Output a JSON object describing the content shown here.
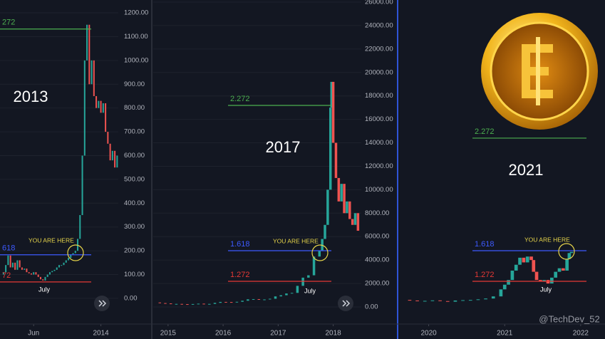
{
  "chart_data": [
    {
      "type": "candlestick",
      "title": "2013",
      "x": [
        2013.14,
        2013.16,
        2013.18,
        2013.2,
        2013.22,
        2013.24,
        2013.26,
        2013.28,
        2013.3,
        2013.32,
        2013.34,
        2013.36,
        2013.38,
        2013.4,
        2013.42,
        2013.44,
        2013.46,
        2013.48,
        2013.5,
        2013.52,
        2013.54,
        2013.56,
        2013.58,
        2013.6,
        2013.62,
        2013.64,
        2013.66,
        2013.68,
        2013.7,
        2013.72,
        2013.74,
        2013.76,
        2013.78,
        2013.8,
        2013.82,
        2013.84,
        2013.86,
        2013.88,
        2013.9,
        2013.92,
        2013.94,
        2013.96,
        2013.98,
        2014.0,
        2014.02,
        2014.04,
        2014.06,
        2014.08,
        2014.1,
        2014.12,
        2014.14
      ],
      "values": [
        100,
        110,
        140,
        180,
        130,
        150,
        120,
        160,
        130,
        120,
        125,
        110,
        105,
        100,
        110,
        100,
        90,
        80,
        75,
        90,
        100,
        110,
        115,
        120,
        130,
        140,
        140,
        150,
        160,
        170,
        185,
        190,
        200,
        250,
        350,
        600,
        1000,
        1150,
        900,
        1000,
        850,
        800,
        830,
        780,
        820,
        700,
        650,
        580,
        620,
        550,
        600
      ],
      "xlim": [
        2013.13,
        2014.15
      ],
      "ylim": [
        -108,
        1254
      ],
      "xticks": [
        {
          "value": 2013.42,
          "label": "Jun"
        },
        2014
      ],
      "yticks": [
        {
          "value": 0,
          "label": "0.00"
        },
        {
          "value": 100,
          "label": "100.00"
        },
        {
          "value": 200,
          "label": "200.00"
        },
        {
          "value": 300,
          "label": "300.00"
        },
        {
          "value": 400,
          "label": "400.00"
        },
        {
          "value": 500,
          "label": "500.00"
        },
        {
          "value": 600,
          "label": "600.00"
        },
        {
          "value": 700,
          "label": "700.00"
        },
        {
          "value": 800,
          "label": "800.00"
        },
        {
          "value": 900,
          "label": "900.00"
        },
        {
          "value": 1000,
          "label": "1000.00"
        },
        {
          "value": 1100,
          "label": "1100.00"
        },
        {
          "value": 1200,
          "label": "1200.00"
        }
      ],
      "grid": true,
      "levels": [
        {
          "label": "272",
          "value": 1132,
          "color": "#4caf50"
        },
        {
          "label": "618",
          "value": 183,
          "color": "#3d5afe"
        },
        {
          "label": "72",
          "value": 69,
          "color": "#e53935"
        }
      ],
      "annotations": [
        "YOU ARE HERE",
        "July"
      ]
    },
    {
      "type": "candlestick",
      "title": "2017",
      "x": [
        2014.75,
        2014.85,
        2014.95,
        2015.05,
        2015.15,
        2015.25,
        2015.35,
        2015.45,
        2015.55,
        2015.65,
        2015.75,
        2015.85,
        2015.95,
        2016.05,
        2016.15,
        2016.25,
        2016.35,
        2016.45,
        2016.55,
        2016.65,
        2016.75,
        2016.85,
        2016.95,
        2017.05,
        2017.15,
        2017.25,
        2017.35,
        2017.45,
        2017.55,
        2017.65,
        2017.75,
        2017.8,
        2017.85,
        2017.9,
        2017.95,
        2017.97,
        2018.0,
        2018.05,
        2018.1,
        2018.15,
        2018.2,
        2018.25,
        2018.3,
        2018.35,
        2018.4,
        2018.45
      ],
      "values": [
        380,
        330,
        300,
        250,
        260,
        240,
        235,
        250,
        280,
        240,
        260,
        350,
        430,
        420,
        410,
        440,
        530,
        650,
        670,
        610,
        640,
        700,
        900,
        1000,
        1150,
        1200,
        1800,
        2500,
        2700,
        4300,
        4800,
        5800,
        7000,
        10000,
        17000,
        19200,
        14000,
        11000,
        9000,
        10500,
        8000,
        9000,
        7500,
        7000,
        8000,
        6500
      ],
      "xlim": [
        2014.73,
        2018.51
      ],
      "ylim": [
        -1458,
        26182
      ],
      "xticks": [
        2015,
        2016,
        2017,
        2018
      ],
      "yticks": [
        {
          "value": 0,
          "label": "0.00"
        },
        {
          "value": 2000,
          "label": "2000.00"
        },
        {
          "value": 4000,
          "label": "4000.00"
        },
        {
          "value": 6000,
          "label": "6000.00"
        },
        {
          "value": 8000,
          "label": "8000.00"
        },
        {
          "value": 10000,
          "label": "10000.00"
        },
        {
          "value": 12000,
          "label": "12000.00"
        },
        {
          "value": 14000,
          "label": "14000.00"
        },
        {
          "value": 16000,
          "label": "16000.00"
        },
        {
          "value": 18000,
          "label": "18000.00"
        },
        {
          "value": 20000,
          "label": "20000.00"
        },
        {
          "value": 22000,
          "label": "22000.00"
        },
        {
          "value": 24000,
          "label": "24000.00"
        },
        {
          "value": 26000,
          "label": "26000.00"
        }
      ],
      "grid": true,
      "levels": [
        {
          "label": "2.272",
          "value": 17193,
          "color": "#4caf50"
        },
        {
          "label": "1.618",
          "value": 4800,
          "color": "#3d5afe"
        },
        {
          "label": "1.272",
          "value": 2187,
          "color": "#e53935"
        }
      ],
      "annotations": [
        "YOU ARE HERE",
        "July"
      ]
    },
    {
      "type": "candlestick",
      "title": "2021",
      "x": [
        2019.65,
        2019.75,
        2019.85,
        2019.95,
        2020.05,
        2020.15,
        2020.25,
        2020.35,
        2020.45,
        2020.55,
        2020.65,
        2020.75,
        2020.85,
        2020.95,
        2021.0,
        2021.05,
        2021.1,
        2021.15,
        2021.2,
        2021.25,
        2021.3,
        2021.35,
        2021.38,
        2021.42,
        2021.47,
        2021.52,
        2021.57,
        2021.62,
        2021.67,
        2021.72,
        2021.77,
        2021.82,
        2021.85,
        2021.88
      ],
      "values": [
        600,
        550,
        500,
        520,
        560,
        500,
        450,
        550,
        580,
        600,
        650,
        720,
        900,
        1500,
        1900,
        2300,
        3100,
        3600,
        4200,
        3800,
        4300,
        4000,
        3000,
        2300,
        2200,
        2300,
        2000,
        2500,
        3000,
        3300,
        3100,
        4100,
        4600,
        4700
      ],
      "xlim": [
        2019.61,
        2022.32
      ],
      "ylim": [
        -1458,
        26182
      ],
      "xticks": [
        2020,
        2021,
        2022
      ],
      "grid": false,
      "levels": [
        {
          "label": "2.272",
          "value": 14400,
          "color": "#4caf50"
        },
        {
          "label": "1.618",
          "value": 4800,
          "color": "#3d5afe"
        },
        {
          "label": "1.272",
          "value": 2187,
          "color": "#e53935"
        }
      ],
      "annotations": [
        "YOU ARE HERE",
        "July"
      ]
    }
  ],
  "watermark": "@TechDev_52"
}
